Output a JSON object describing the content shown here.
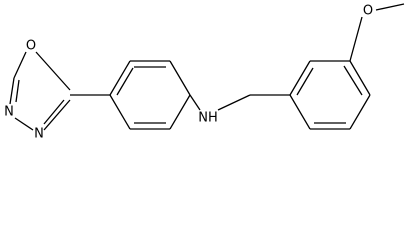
{
  "atoms": [
    {
      "label": "O"
    },
    {
      "label": "N"
    },
    {
      "label": "N"
    },
    {
      "label": "NH"
    },
    {
      "label": "O"
    }
  ]
}
